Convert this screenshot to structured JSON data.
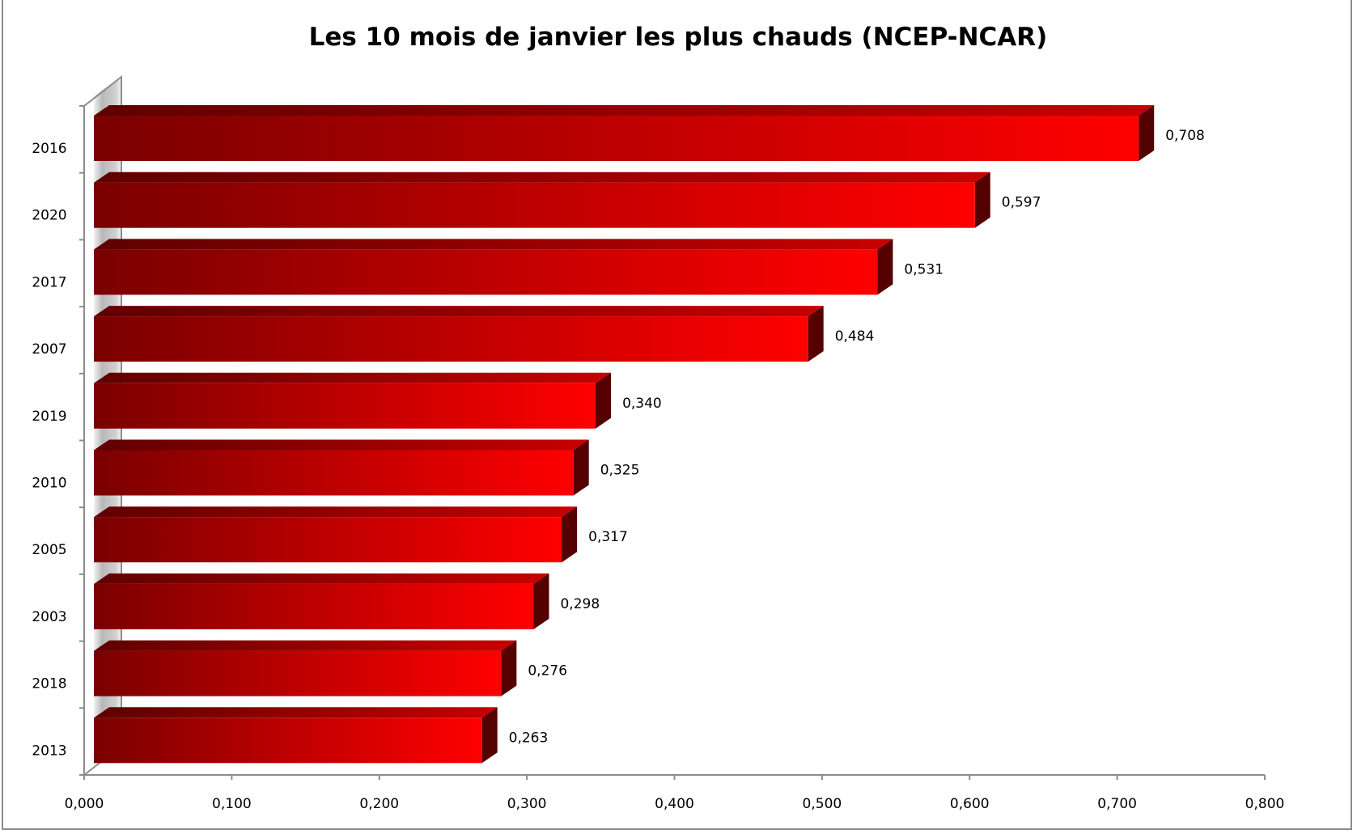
{
  "chart_data": {
    "type": "bar",
    "orientation": "horizontal",
    "style": "3d",
    "title": "Les 10 mois de janvier les plus chauds (NCEP-NCAR)",
    "xlabel": "",
    "ylabel": "",
    "categories": [
      "2016",
      "2020",
      "2017",
      "2007",
      "2019",
      "2010",
      "2005",
      "2003",
      "2018",
      "2013"
    ],
    "values": [
      0.708,
      0.597,
      0.531,
      0.484,
      0.34,
      0.325,
      0.317,
      0.298,
      0.276,
      0.263
    ],
    "value_labels": [
      "0,708",
      "0,597",
      "0,531",
      "0,484",
      "0,340",
      "0,325",
      "0,317",
      "0,298",
      "0,276",
      "0,263"
    ],
    "xlim": [
      0,
      0.8
    ],
    "xticks": [
      0,
      0.1,
      0.2,
      0.3,
      0.4,
      0.5,
      0.6,
      0.7,
      0.8
    ],
    "xtick_labels": [
      "0,000",
      "0,100",
      "0,200",
      "0,300",
      "0,400",
      "0,500",
      "0,600",
      "0,700",
      "0,800"
    ],
    "grid": false,
    "legend": "none",
    "colors": {
      "bar_dark": "#7a0000",
      "bar_light": "#ff0000",
      "top_dark": "#5e0000",
      "top_light": "#c80000",
      "side": "#550000"
    }
  }
}
